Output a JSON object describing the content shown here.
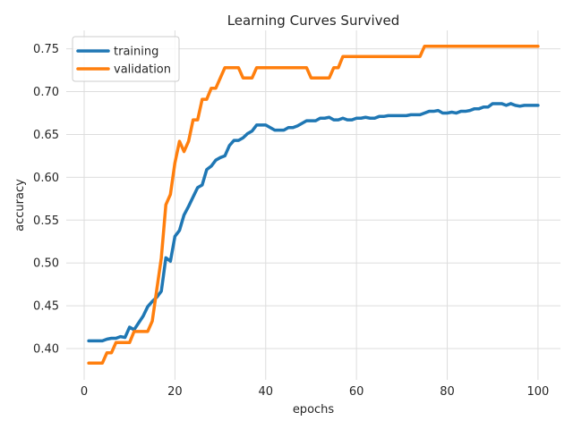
{
  "chart_data": {
    "type": "line",
    "title": "Learning Curves Survived",
    "xlabel": "epochs",
    "ylabel": "accuracy",
    "xlim": [
      -3.95,
      104.95
    ],
    "ylim": [
      0.3635,
      0.7715
    ],
    "xticks": [
      0,
      20,
      40,
      60,
      80,
      100
    ],
    "yticks": [
      0.4,
      0.45,
      0.5,
      0.55,
      0.6,
      0.65,
      0.7,
      0.75
    ],
    "ytick_labels": [
      "0.40",
      "0.45",
      "0.50",
      "0.55",
      "0.60",
      "0.65",
      "0.70",
      "0.75"
    ],
    "grid": true,
    "legend_position": "upper-left",
    "series": [
      {
        "name": "training",
        "color": "#1f77b4",
        "x": [
          1,
          2,
          3,
          4,
          5,
          6,
          7,
          8,
          9,
          10,
          11,
          12,
          13,
          14,
          15,
          16,
          17,
          18,
          19,
          20,
          21,
          22,
          23,
          24,
          25,
          26,
          27,
          28,
          29,
          30,
          31,
          32,
          33,
          34,
          35,
          36,
          37,
          38,
          39,
          40,
          41,
          42,
          43,
          44,
          45,
          46,
          47,
          48,
          49,
          50,
          51,
          52,
          53,
          54,
          55,
          56,
          57,
          58,
          59,
          60,
          61,
          62,
          63,
          64,
          65,
          66,
          67,
          68,
          69,
          70,
          71,
          72,
          73,
          74,
          75,
          76,
          77,
          78,
          79,
          80,
          81,
          82,
          83,
          84,
          85,
          86,
          87,
          88,
          89,
          90,
          91,
          92,
          93,
          94,
          95,
          96,
          97,
          98,
          99,
          100
        ],
        "y": [
          0.409,
          0.409,
          0.409,
          0.409,
          0.411,
          0.412,
          0.412,
          0.414,
          0.413,
          0.425,
          0.422,
          0.43,
          0.438,
          0.449,
          0.455,
          0.46,
          0.467,
          0.506,
          0.502,
          0.531,
          0.538,
          0.556,
          0.566,
          0.577,
          0.588,
          0.591,
          0.609,
          0.613,
          0.62,
          0.623,
          0.625,
          0.637,
          0.643,
          0.643,
          0.646,
          0.651,
          0.654,
          0.661,
          0.661,
          0.661,
          0.658,
          0.655,
          0.655,
          0.655,
          0.658,
          0.658,
          0.66,
          0.663,
          0.666,
          0.666,
          0.666,
          0.669,
          0.669,
          0.67,
          0.667,
          0.667,
          0.669,
          0.667,
          0.667,
          0.669,
          0.669,
          0.67,
          0.669,
          0.669,
          0.671,
          0.671,
          0.672,
          0.672,
          0.672,
          0.672,
          0.672,
          0.673,
          0.673,
          0.673,
          0.675,
          0.677,
          0.677,
          0.678,
          0.675,
          0.675,
          0.676,
          0.675,
          0.677,
          0.677,
          0.678,
          0.68,
          0.68,
          0.682,
          0.682,
          0.686,
          0.686,
          0.686,
          0.684,
          0.686,
          0.684,
          0.683,
          0.684,
          0.684,
          0.684,
          0.684
        ]
      },
      {
        "name": "validation",
        "color": "#ff7f0e",
        "x": [
          1,
          2,
          3,
          4,
          5,
          6,
          7,
          8,
          9,
          10,
          11,
          12,
          13,
          14,
          15,
          16,
          17,
          18,
          19,
          20,
          21,
          22,
          23,
          24,
          25,
          26,
          27,
          28,
          29,
          30,
          31,
          32,
          33,
          34,
          35,
          36,
          37,
          38,
          39,
          40,
          41,
          42,
          43,
          44,
          45,
          46,
          47,
          48,
          49,
          50,
          51,
          52,
          53,
          54,
          55,
          56,
          57,
          58,
          59,
          60,
          61,
          62,
          63,
          64,
          65,
          66,
          67,
          68,
          69,
          70,
          71,
          72,
          73,
          74,
          75,
          76,
          77,
          78,
          79,
          80,
          81,
          82,
          83,
          84,
          85,
          86,
          87,
          88,
          89,
          90,
          91,
          92,
          93,
          94,
          95,
          96,
          97,
          98,
          99,
          100
        ],
        "y": [
          0.383,
          0.383,
          0.383,
          0.383,
          0.395,
          0.395,
          0.407,
          0.407,
          0.407,
          0.407,
          0.42,
          0.42,
          0.42,
          0.42,
          0.432,
          0.469,
          0.506,
          0.568,
          0.58,
          0.617,
          0.642,
          0.63,
          0.642,
          0.667,
          0.667,
          0.691,
          0.691,
          0.704,
          0.704,
          0.716,
          0.728,
          0.728,
          0.728,
          0.728,
          0.716,
          0.716,
          0.716,
          0.728,
          0.728,
          0.728,
          0.728,
          0.728,
          0.728,
          0.728,
          0.728,
          0.728,
          0.728,
          0.728,
          0.728,
          0.716,
          0.716,
          0.716,
          0.716,
          0.716,
          0.728,
          0.728,
          0.741,
          0.741,
          0.741,
          0.741,
          0.741,
          0.741,
          0.741,
          0.741,
          0.741,
          0.741,
          0.741,
          0.741,
          0.741,
          0.741,
          0.741,
          0.741,
          0.741,
          0.741,
          0.753,
          0.753,
          0.753,
          0.753,
          0.753,
          0.753,
          0.753,
          0.753,
          0.753,
          0.753,
          0.753,
          0.753,
          0.753,
          0.753,
          0.753,
          0.753,
          0.753,
          0.753,
          0.753,
          0.753,
          0.753,
          0.753,
          0.753,
          0.753,
          0.753,
          0.753
        ]
      }
    ]
  }
}
